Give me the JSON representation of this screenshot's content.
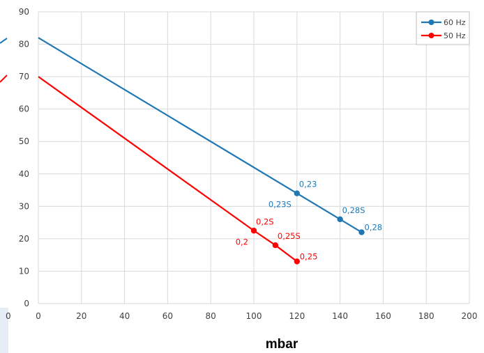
{
  "chart_data": {
    "type": "line",
    "xlabel": "mbar",
    "ylabel": "",
    "xlim": [
      0,
      200
    ],
    "ylim": [
      0,
      90
    ],
    "x_ticks": [
      0,
      20,
      40,
      60,
      80,
      100,
      120,
      140,
      160,
      180,
      200
    ],
    "y_ticks": [
      0,
      10,
      20,
      30,
      40,
      50,
      60,
      70,
      80,
      90
    ],
    "grid": true,
    "legend_position": "top-right",
    "series": [
      {
        "name": "60 Hz",
        "color": "#1f77b4",
        "x": [
          0,
          120,
          140,
          150
        ],
        "y": [
          82,
          34,
          26,
          22
        ],
        "points": [
          {
            "x": 120,
            "y": 34,
            "labels": [
              {
                "text": "0,23",
                "pos": "above-right"
              },
              {
                "text": "0,23S",
                "pos": "below-left"
              }
            ]
          },
          {
            "x": 140,
            "y": 26,
            "labels": [
              {
                "text": "0,28S",
                "pos": "above-right"
              }
            ]
          },
          {
            "x": 150,
            "y": 22,
            "labels": [
              {
                "text": "0,28",
                "pos": "right"
              }
            ]
          }
        ]
      },
      {
        "name": "50 Hz",
        "color": "#ff0000",
        "x": [
          0,
          100,
          110,
          120
        ],
        "y": [
          70,
          22.5,
          18,
          13
        ],
        "points": [
          {
            "x": 100,
            "y": 22.5,
            "labels": [
              {
                "text": "0,2S",
                "pos": "above-right"
              },
              {
                "text": "0,2",
                "pos": "below-left"
              }
            ]
          },
          {
            "x": 110,
            "y": 18,
            "labels": [
              {
                "text": "0,25S",
                "pos": "above-right"
              }
            ]
          },
          {
            "x": 120,
            "y": 13,
            "labels": [
              {
                "text": "0,25",
                "pos": "right"
              }
            ]
          }
        ]
      }
    ]
  },
  "left_strip": {
    "tick_label": "0"
  }
}
